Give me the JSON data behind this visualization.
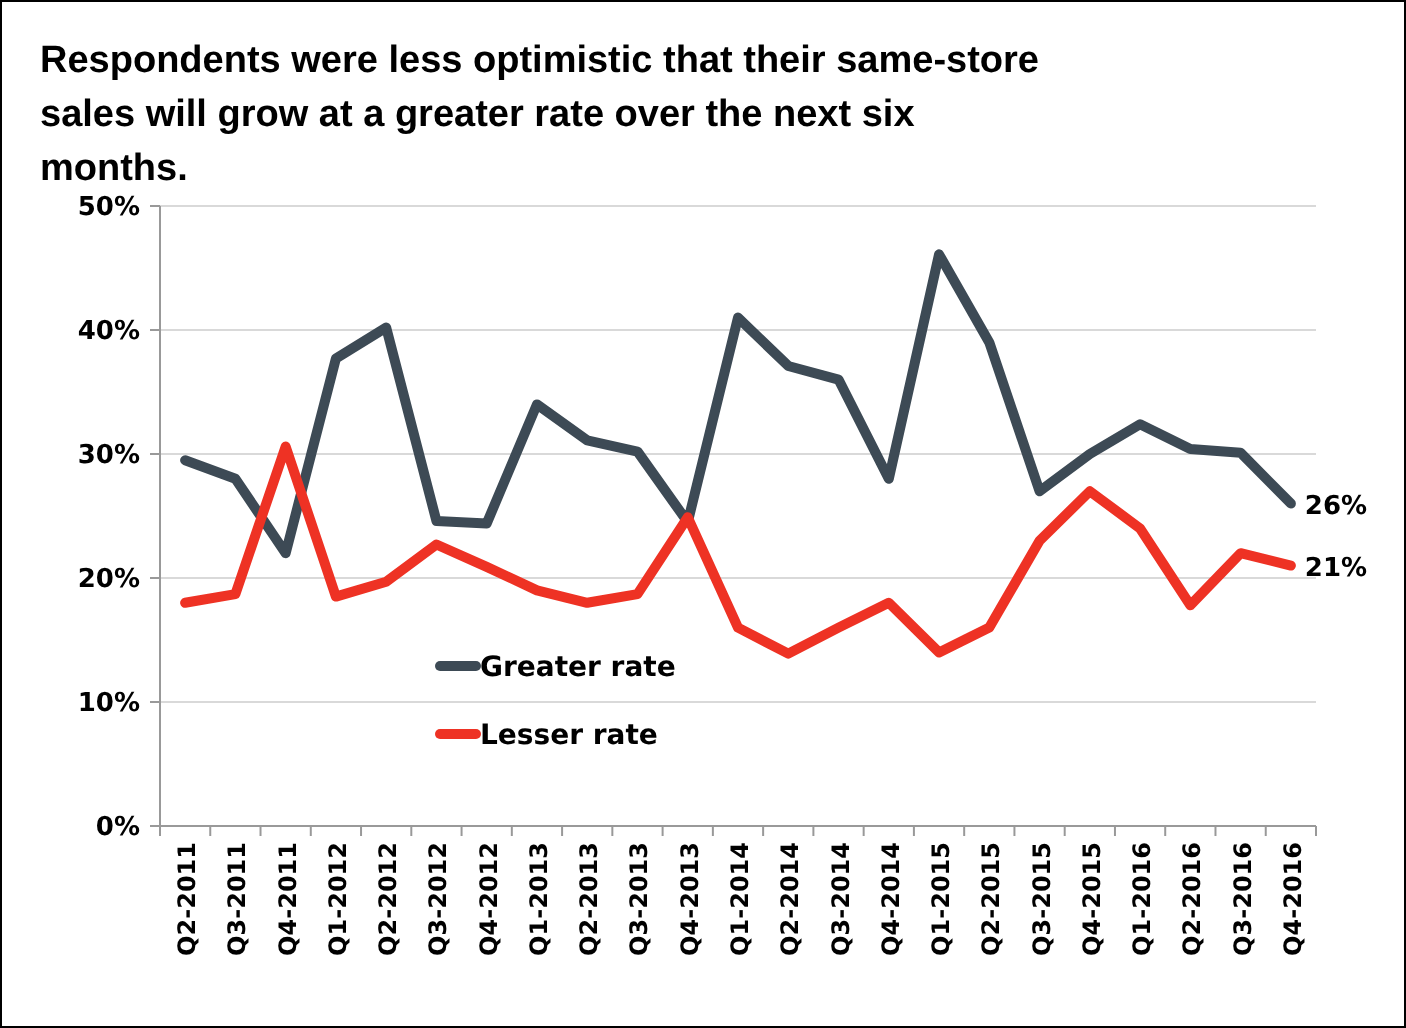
{
  "chart_data": {
    "type": "line",
    "title": "Respondents were less optimistic that their same-store sales will grow at a greater rate over the next six months.",
    "categories": [
      "Q2-2011",
      "Q3-2011",
      "Q4-2011",
      "Q1-2012",
      "Q2-2012",
      "Q3-2012",
      "Q4-2012",
      "Q1-2013",
      "Q2-2013",
      "Q3-2013",
      "Q4-2013",
      "Q1-2014",
      "Q2-2014",
      "Q3-2014",
      "Q4-2014",
      "Q1-2015",
      "Q2-2015",
      "Q3-2015",
      "Q4-2015",
      "Q1-2016",
      "Q2-2016",
      "Q3-2016",
      "Q4-2016"
    ],
    "series": [
      {
        "name": "Greater rate",
        "color": "#3d4a55",
        "values": [
          29.5,
          28,
          22,
          37.7,
          40.2,
          24.6,
          24.4,
          34,
          31.1,
          30.2,
          24.5,
          41,
          37.1,
          36,
          28,
          46.1,
          39,
          27,
          30,
          32.4,
          30.4,
          30.1,
          26
        ],
        "value_labels": [
          null,
          null,
          null,
          null,
          null,
          null,
          null,
          null,
          null,
          null,
          null,
          null,
          null,
          null,
          null,
          null,
          null,
          null,
          null,
          null,
          null,
          null,
          "26%"
        ]
      },
      {
        "name": "Lesser rate",
        "color": "#ee3224",
        "values": [
          18,
          18.7,
          30.6,
          18.5,
          19.7,
          22.7,
          20.9,
          19,
          18,
          18.7,
          24.9,
          16,
          13.9,
          16,
          18,
          14,
          16,
          23,
          27,
          24,
          17.8,
          22,
          21
        ],
        "value_labels": [
          null,
          null,
          null,
          null,
          null,
          null,
          null,
          null,
          null,
          null,
          null,
          null,
          null,
          null,
          null,
          null,
          null,
          null,
          null,
          null,
          null,
          null,
          "21%"
        ]
      }
    ],
    "ylim": [
      0,
      50
    ],
    "yticks": [
      {
        "value": 0,
        "label": "0%"
      },
      {
        "value": 10,
        "label": "10%"
      },
      {
        "value": 20,
        "label": "20%"
      },
      {
        "value": 30,
        "label": "30%"
      },
      {
        "value": 40,
        "label": "40%"
      },
      {
        "value": 50,
        "label": "50%"
      }
    ],
    "grid": "y",
    "legend": "bottom left",
    "marker": "none",
    "line_style": "solid"
  }
}
